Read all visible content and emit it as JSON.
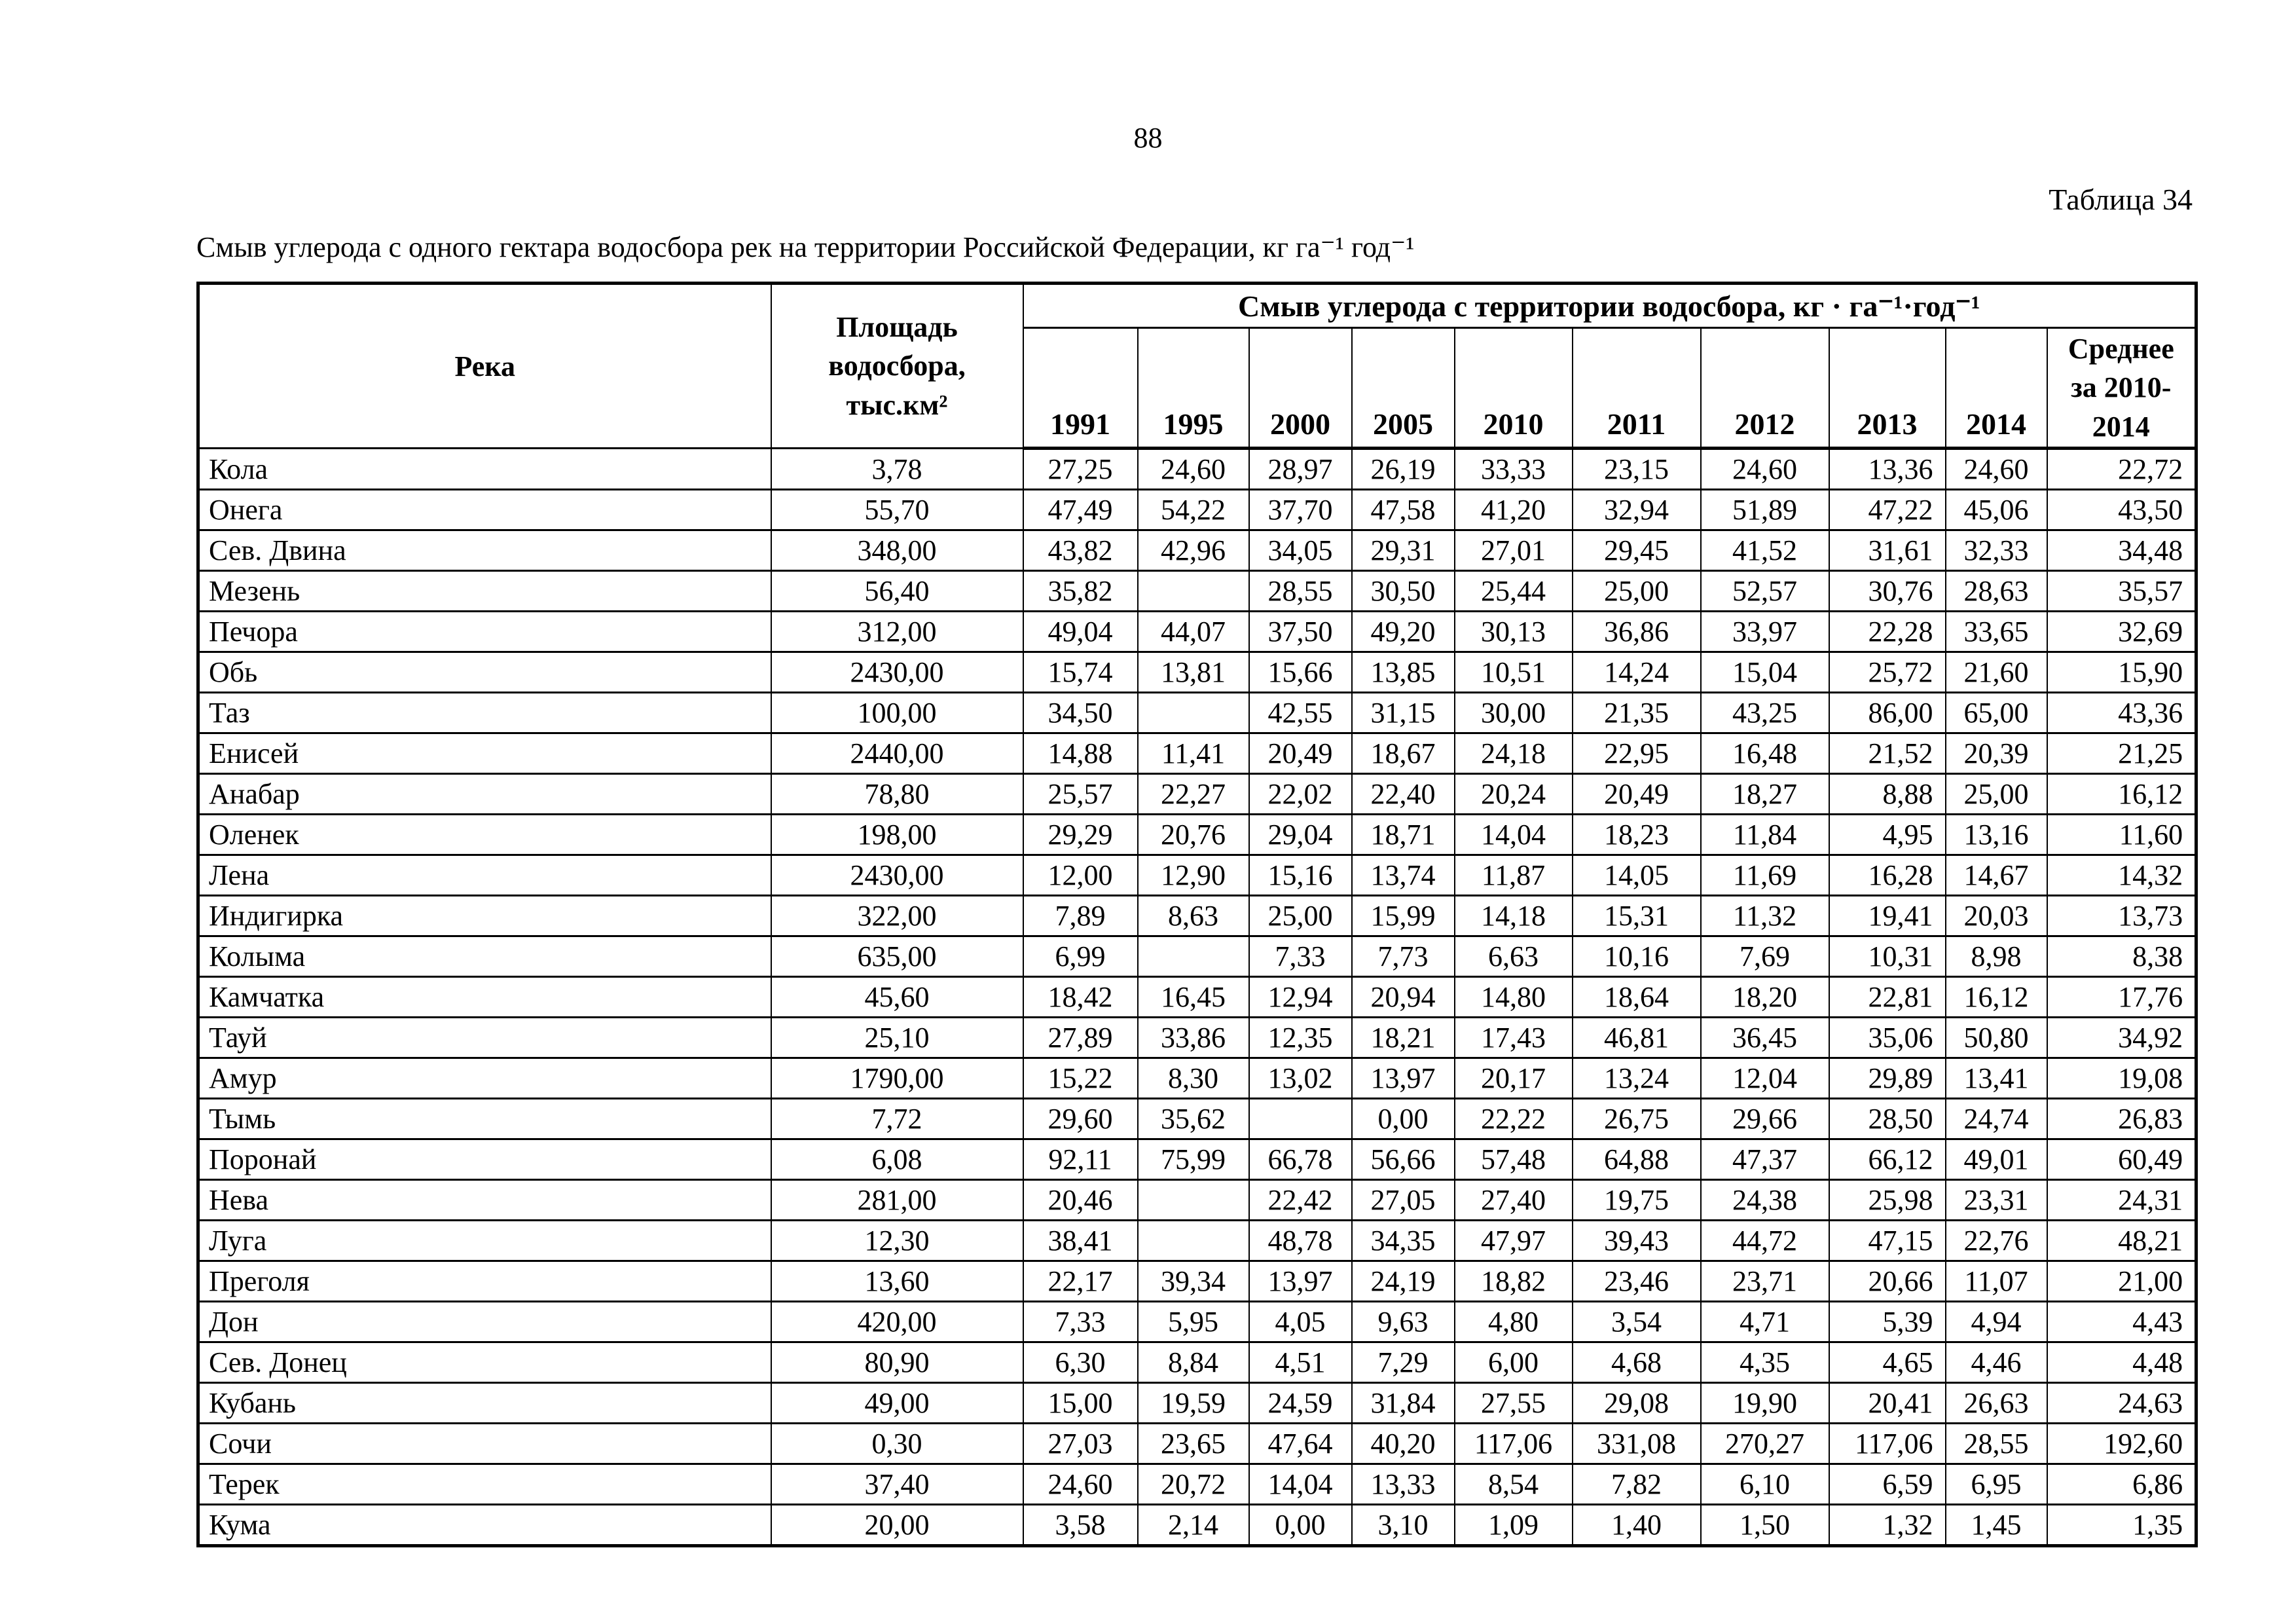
{
  "page": {
    "number": "88",
    "table_label": "Таблица 34",
    "title": "Смыв углерода с одного гектара водосбора рек на территории Российской Федерации, кг га⁻¹ год⁻¹"
  },
  "table": {
    "headers": {
      "river": "Река",
      "area": "Площадь\nводосбора,\nтыс.км²",
      "group": "Смыв углерода с территории водосбора, кг · га⁻¹·год⁻¹",
      "years": [
        "1991",
        "1995",
        "2000",
        "2005",
        "2010",
        "2011",
        "2012",
        "2013",
        "2014"
      ],
      "avg": "Среднее\nза 2010-\n2014"
    },
    "rows": [
      {
        "name": "Кола",
        "area": "3,78",
        "values": [
          "27,25",
          "24,60",
          "28,97",
          "26,19",
          "33,33",
          "23,15",
          "24,60",
          "13,36",
          "24,60",
          "22,72"
        ]
      },
      {
        "name": "Онега",
        "area": "55,70",
        "values": [
          "47,49",
          "54,22",
          "37,70",
          "47,58",
          "41,20",
          "32,94",
          "51,89",
          "47,22",
          "45,06",
          "43,50"
        ]
      },
      {
        "name": "Сев. Двина",
        "area": "348,00",
        "values": [
          "43,82",
          "42,96",
          "34,05",
          "29,31",
          "27,01",
          "29,45",
          "41,52",
          "31,61",
          "32,33",
          "34,48"
        ]
      },
      {
        "name": "Мезень",
        "area": "56,40",
        "values": [
          "35,82",
          "",
          "28,55",
          "30,50",
          "25,44",
          "25,00",
          "52,57",
          "30,76",
          "28,63",
          "35,57"
        ]
      },
      {
        "name": "Печора",
        "area": "312,00",
        "values": [
          "49,04",
          "44,07",
          "37,50",
          "49,20",
          "30,13",
          "36,86",
          "33,97",
          "22,28",
          "33,65",
          "32,69"
        ]
      },
      {
        "name": "Обь",
        "area": "2430,00",
        "values": [
          "15,74",
          "13,81",
          "15,66",
          "13,85",
          "10,51",
          "14,24",
          "15,04",
          "25,72",
          "21,60",
          "15,90"
        ]
      },
      {
        "name": "Таз",
        "area": "100,00",
        "values": [
          "34,50",
          "",
          "42,55",
          "31,15",
          "30,00",
          "21,35",
          "43,25",
          "86,00",
          "65,00",
          "43,36"
        ]
      },
      {
        "name": "Енисей",
        "area": "2440,00",
        "values": [
          "14,88",
          "11,41",
          "20,49",
          "18,67",
          "24,18",
          "22,95",
          "16,48",
          "21,52",
          "20,39",
          "21,25"
        ]
      },
      {
        "name": "Анабар",
        "area": "78,80",
        "values": [
          "25,57",
          "22,27",
          "22,02",
          "22,40",
          "20,24",
          "20,49",
          "18,27",
          "8,88",
          "25,00",
          "16,12"
        ]
      },
      {
        "name": "Оленек",
        "area": "198,00",
        "values": [
          "29,29",
          "20,76",
          "29,04",
          "18,71",
          "14,04",
          "18,23",
          "11,84",
          "4,95",
          "13,16",
          "11,60"
        ]
      },
      {
        "name": "Лена",
        "area": "2430,00",
        "values": [
          "12,00",
          "12,90",
          "15,16",
          "13,74",
          "11,87",
          "14,05",
          "11,69",
          "16,28",
          "14,67",
          "14,32"
        ]
      },
      {
        "name": "Индигирка",
        "area": "322,00",
        "values": [
          "7,89",
          "8,63",
          "25,00",
          "15,99",
          "14,18",
          "15,31",
          "11,32",
          "19,41",
          "20,03",
          "13,73"
        ]
      },
      {
        "name": "Колыма",
        "area": "635,00",
        "values": [
          "6,99",
          "",
          "7,33",
          "7,73",
          "6,63",
          "10,16",
          "7,69",
          "10,31",
          "8,98",
          "8,38"
        ]
      },
      {
        "name": "Камчатка",
        "area": "45,60",
        "values": [
          "18,42",
          "16,45",
          "12,94",
          "20,94",
          "14,80",
          "18,64",
          "18,20",
          "22,81",
          "16,12",
          "17,76"
        ]
      },
      {
        "name": "Тауй",
        "area": "25,10",
        "values": [
          "27,89",
          "33,86",
          "12,35",
          "18,21",
          "17,43",
          "46,81",
          "36,45",
          "35,06",
          "50,80",
          "34,92"
        ]
      },
      {
        "name": "Амур",
        "area": "1790,00",
        "values": [
          "15,22",
          "8,30",
          "13,02",
          "13,97",
          "20,17",
          "13,24",
          "12,04",
          "29,89",
          "13,41",
          "19,08"
        ]
      },
      {
        "name": "Тымь",
        "area": "7,72",
        "values": [
          "29,60",
          "35,62",
          "",
          "0,00",
          "22,22",
          "26,75",
          "29,66",
          "28,50",
          "24,74",
          "26,83"
        ]
      },
      {
        "name": "Поронай",
        "area": "6,08",
        "values": [
          "92,11",
          "75,99",
          "66,78",
          "56,66",
          "57,48",
          "64,88",
          "47,37",
          "66,12",
          "49,01",
          "60,49"
        ]
      },
      {
        "name": "Нева",
        "area": "281,00",
        "values": [
          "20,46",
          "",
          "22,42",
          "27,05",
          "27,40",
          "19,75",
          "24,38",
          "25,98",
          "23,31",
          "24,31"
        ]
      },
      {
        "name": "Луга",
        "area": "12,30",
        "values": [
          "38,41",
          "",
          "48,78",
          "34,35",
          "47,97",
          "39,43",
          "44,72",
          "47,15",
          "22,76",
          "48,21"
        ]
      },
      {
        "name": "Преголя",
        "area": "13,60",
        "values": [
          "22,17",
          "39,34",
          "13,97",
          "24,19",
          "18,82",
          "23,46",
          "23,71",
          "20,66",
          "11,07",
          "21,00"
        ]
      },
      {
        "name": "Дон",
        "area": "420,00",
        "values": [
          "7,33",
          "5,95",
          "4,05",
          "9,63",
          "4,80",
          "3,54",
          "4,71",
          "5,39",
          "4,94",
          "4,43"
        ]
      },
      {
        "name": "Сев. Донец",
        "area": "80,90",
        "values": [
          "6,30",
          "8,84",
          "4,51",
          "7,29",
          "6,00",
          "4,68",
          "4,35",
          "4,65",
          "4,46",
          "4,48"
        ]
      },
      {
        "name": "Кубань",
        "area": "49,00",
        "values": [
          "15,00",
          "19,59",
          "24,59",
          "31,84",
          "27,55",
          "29,08",
          "19,90",
          "20,41",
          "26,63",
          "24,63"
        ]
      },
      {
        "name": "Сочи",
        "area": "0,30",
        "values": [
          "27,03",
          "23,65",
          "47,64",
          "40,20",
          "117,06",
          "331,08",
          "270,27",
          "117,06",
          "28,55",
          "192,60"
        ]
      },
      {
        "name": "Терек",
        "area": "37,40",
        "values": [
          "24,60",
          "20,72",
          "14,04",
          "13,33",
          "8,54",
          "7,82",
          "6,10",
          "6,59",
          "6,95",
          "6,86"
        ]
      },
      {
        "name": "Кума",
        "area": "20,00",
        "values": [
          "3,58",
          "2,14",
          "0,00",
          "3,10",
          "1,09",
          "1,40",
          "1,50",
          "1,32",
          "1,45",
          "1,35"
        ]
      }
    ]
  }
}
